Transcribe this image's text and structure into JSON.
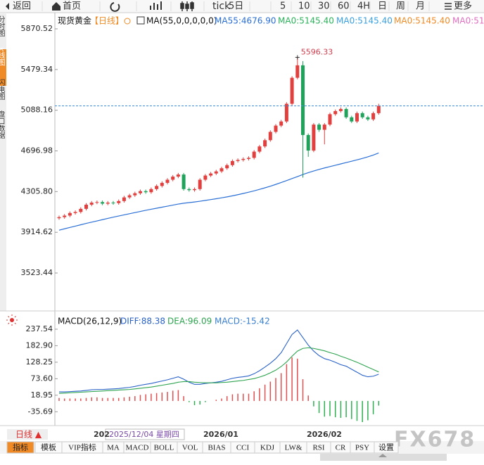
{
  "toolbar": {
    "back": "返回",
    "home": "首页",
    "tick": "tick",
    "periods": [
      "5日",
      "5",
      "10",
      "30",
      "60",
      "4H",
      "日",
      "周",
      "月"
    ],
    "more": "更多"
  },
  "side_tabs": [
    "分时图",
    "K线图",
    "闪电图",
    "盘口数据"
  ],
  "chart_data": [
    {
      "type": "candlestick",
      "title": "现货黄金",
      "period_label": "【日线】",
      "indicator": "MA(55,0,0,0,0,0)",
      "ylim": [
        3172,
        5999
      ],
      "yticks": [
        5870.52,
        5479.34,
        5088.16,
        4696.98,
        {
          "value": 4305.8,
          "label": "4305.80"
        },
        3914.62,
        3523.44
      ],
      "up_color": "#e2403f",
      "down_color": "#1fa25a",
      "open": [
        4050,
        4060,
        4075,
        4100,
        4110,
        4140,
        4180,
        4200,
        4205,
        4190,
        4200,
        4195,
        4215,
        4250,
        4270,
        4290,
        4310,
        4300,
        4330,
        4360,
        4390,
        4420,
        4450,
        4470,
        4330,
        4320,
        4330,
        4420,
        4460,
        4480,
        4500,
        4530,
        4560,
        4600,
        4610,
        4620,
        4630,
        4690,
        4740,
        4800,
        4880,
        4940,
        4980,
        5150,
        5400,
        5520,
        4850,
        4700,
        4950,
        4900,
        4950,
        5050,
        5080,
        5100,
        5020,
        4980,
        5060,
        5020,
        5000,
        5060
      ],
      "high": [
        4075,
        4090,
        4115,
        4125,
        4155,
        4195,
        4215,
        4220,
        4220,
        4215,
        4215,
        4230,
        4265,
        4285,
        4305,
        4325,
        4325,
        4345,
        4375,
        4405,
        4435,
        4465,
        4485,
        4485,
        4345,
        4345,
        4435,
        4475,
        4495,
        4515,
        4545,
        4575,
        4615,
        4625,
        4635,
        4645,
        4705,
        4755,
        4815,
        4895,
        4955,
        4995,
        5165,
        5415,
        5596.33,
        5560,
        4865,
        4965,
        4965,
        4965,
        5065,
        5095,
        5115,
        5115,
        5035,
        5075,
        5075,
        5035,
        5075,
        5150
      ],
      "low": [
        4035,
        4045,
        4060,
        4085,
        4095,
        4125,
        4165,
        4185,
        4175,
        4175,
        4180,
        4180,
        4200,
        4235,
        4255,
        4275,
        4285,
        4285,
        4315,
        4345,
        4375,
        4405,
        4435,
        4315,
        4305,
        4305,
        4315,
        4405,
        4445,
        4465,
        4485,
        4515,
        4545,
        4585,
        4595,
        4605,
        4615,
        4675,
        4725,
        4785,
        4865,
        4925,
        4965,
        5135,
        5385,
        4440,
        4640,
        4685,
        4880,
        4760,
        4935,
        5035,
        5065,
        5005,
        4965,
        4965,
        5005,
        4985,
        4985,
        5045
      ],
      "close": [
        4060,
        4075,
        4100,
        4110,
        4140,
        4180,
        4200,
        4205,
        4190,
        4200,
        4195,
        4215,
        4250,
        4270,
        4290,
        4310,
        4300,
        4330,
        4360,
        4390,
        4420,
        4450,
        4470,
        4330,
        4320,
        4330,
        4420,
        4460,
        4480,
        4500,
        4530,
        4560,
        4600,
        4610,
        4620,
        4630,
        4690,
        4740,
        4800,
        4880,
        4940,
        4980,
        5150,
        5400,
        5520,
        4850,
        4700,
        4950,
        4900,
        4950,
        5050,
        5080,
        5100,
        5020,
        4980,
        5060,
        5020,
        5000,
        5060,
        5130
      ],
      "series": [
        {
          "name": "MA55:4676.90",
          "color": "#2a6fd6",
          "values": [
            3935,
            3948,
            3961,
            3974,
            3987,
            4000,
            4012,
            4024,
            4036,
            4048,
            4060,
            4071,
            4082,
            4093,
            4104,
            4115,
            4126,
            4136,
            4146,
            4156,
            4166,
            4176,
            4186,
            4194,
            4200,
            4206,
            4213,
            4221,
            4229,
            4237,
            4246,
            4255,
            4265,
            4276,
            4288,
            4300,
            4313,
            4327,
            4342,
            4358,
            4375,
            4393,
            4412,
            4431,
            4450,
            4470,
            4488,
            4504,
            4519,
            4533,
            4546,
            4559,
            4572,
            4585,
            4598,
            4611,
            4625,
            4640,
            4657,
            4676.9
          ]
        }
      ],
      "legend_extra": [
        {
          "label": "MA0:5145.40",
          "color": "#2bb35a"
        },
        {
          "label": "MA0:5145.40",
          "color": "#3aa0e0"
        },
        {
          "label": "MA0:5145.40",
          "color": "#f08a24"
        },
        {
          "label": "MA0:51",
          "color": "#e070c0"
        }
      ]
    },
    {
      "type": "macd",
      "title": "MACD(26,12,9)",
      "ylim": [
        -70,
        284
      ],
      "yticks": [
        237.54,
        {
          "value": 182.9,
          "label": "182.90"
        },
        128.25,
        {
          "value": 73.6,
          "label": "73.60"
        },
        18.95,
        -35.69
      ],
      "series": [
        {
          "name": "DIFF:88.38",
          "color": "#2a62c8",
          "values": [
            30,
            30,
            31,
            32,
            33,
            35,
            37,
            38,
            38,
            39,
            40,
            41,
            43,
            45,
            48,
            52,
            55,
            58,
            62,
            66,
            70,
            75,
            80,
            72,
            62,
            55,
            55,
            58,
            60,
            62,
            65,
            70,
            75,
            78,
            80,
            83,
            90,
            100,
            112,
            125,
            140,
            160,
            190,
            220,
            235,
            210,
            185,
            165,
            150,
            140,
            135,
            128,
            120,
            115,
            105,
            95,
            85,
            80,
            82,
            88.38
          ]
        },
        {
          "name": "DEA:96.09",
          "color": "#2ea44f",
          "values": [
            25,
            26,
            27,
            28,
            29,
            30,
            31,
            32,
            33,
            34,
            35,
            36,
            37,
            38,
            40,
            42,
            44,
            46,
            49,
            52,
            55,
            58,
            62,
            64,
            64,
            62,
            61,
            60,
            60,
            60,
            61,
            62,
            64,
            66,
            68,
            71,
            74,
            79,
            85,
            93,
            102,
            114,
            129,
            148,
            165,
            174,
            176,
            174,
            170,
            166,
            160,
            155,
            148,
            142,
            135,
            128,
            120,
            112,
            104,
            96.09
          ]
        }
      ],
      "histogram": {
        "name": "MACD:-15.42",
        "color": "#3a7fd0",
        "up_color": "#e05050",
        "down_color": "#2fb050",
        "values": [
          10,
          8,
          8,
          8,
          8,
          10,
          12,
          12,
          10,
          10,
          10,
          10,
          12,
          14,
          16,
          20,
          22,
          24,
          26,
          28,
          30,
          34,
          36,
          16,
          -4,
          -14,
          -12,
          -4,
          0,
          4,
          8,
          16,
          22,
          24,
          24,
          24,
          32,
          42,
          54,
          64,
          76,
          92,
          122,
          144,
          140,
          72,
          18,
          -18,
          -40,
          -52,
          -50,
          -54,
          -56,
          -54,
          -60,
          -66,
          -70,
          -64,
          -44,
          -15.42
        ]
      }
    }
  ],
  "x_axis": {
    "labels": [
      "202",
      "2026/01",
      "2026/02"
    ],
    "cursor_label": "2025/12/04 星期四"
  },
  "period_tab": "日线 ▲",
  "indicator_tabs": [
    "指标",
    "模板",
    "VIP指标",
    "MA",
    "MACD",
    "BOLL",
    "VOL",
    "BIAS",
    "CCI",
    "KDJ",
    "LW&",
    "RSI",
    "CR",
    "PSY",
    "设置"
  ],
  "watermark": "FX678"
}
